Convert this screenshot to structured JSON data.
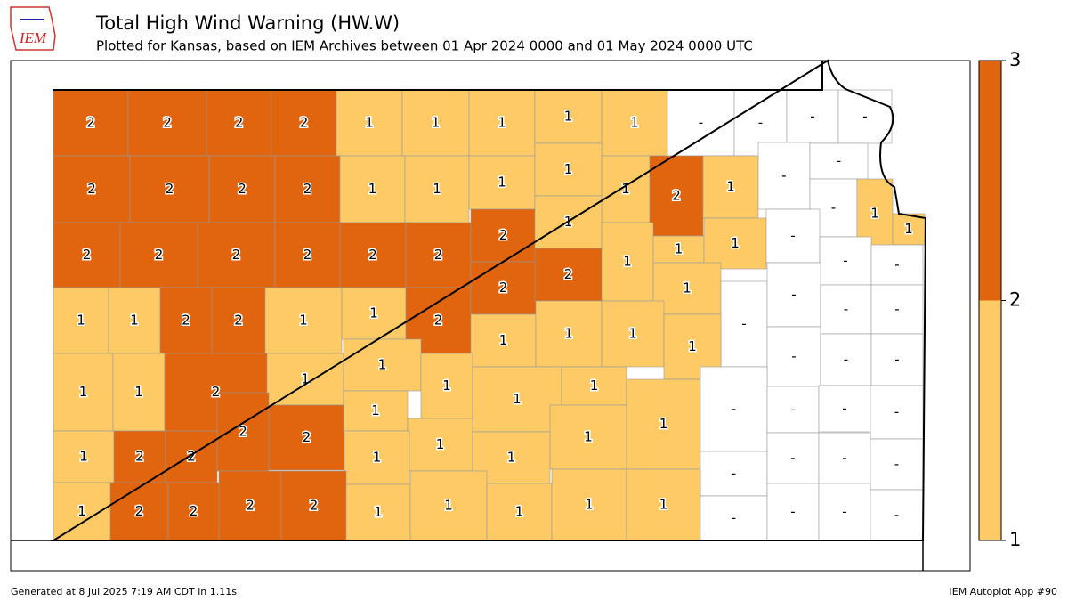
{
  "header": {
    "logo": "IEM",
    "title": "Total High Wind Warning (HW.W)",
    "subtitle": "Plotted for Kansas, based on IEM Archives  between 01 Apr 2024 0000 and 01 May 2024 0000 UTC"
  },
  "map": {
    "counties": [
      "2",
      "2",
      "2",
      "2",
      "1",
      "1",
      "1",
      "1",
      "1",
      "-",
      "-",
      "-",
      "-",
      "2",
      "2",
      "2",
      "2",
      "1",
      "1",
      "1",
      "1",
      "1",
      "2",
      "1",
      "-",
      "-",
      "-",
      "1",
      "1",
      "2",
      "2",
      "2",
      "2",
      "2",
      "2",
      "2",
      "1",
      "1",
      "1",
      "1",
      "-",
      "-",
      "-",
      "1",
      "1",
      "2",
      "2",
      "1",
      "1",
      "2",
      "2",
      "2",
      "1",
      "-",
      "-",
      "-",
      "-",
      "1",
      "1",
      "2",
      "1",
      "1",
      "1",
      "1",
      "1",
      "1",
      "1",
      "-",
      "-",
      "-",
      "2",
      "2",
      "1",
      "1",
      "1",
      "1",
      "-",
      "1",
      "1",
      "-",
      "-",
      "-",
      "1",
      "2",
      "2",
      "1",
      "1",
      "-",
      "-",
      "-",
      "-",
      "1",
      "2",
      "2",
      "2",
      "2",
      "1",
      "1",
      "1",
      "1",
      "1",
      "-",
      "-",
      "-",
      "-"
    ],
    "colorbar": {
      "ticks": [
        1,
        2,
        3
      ],
      "colors": [
        "#fdca65",
        "#e1640f"
      ]
    }
  },
  "footer": {
    "left": "Generated at 8 Jul 2025 7:19 AM CDT in 1.11s",
    "right": "IEM Autoplot App #90"
  }
}
